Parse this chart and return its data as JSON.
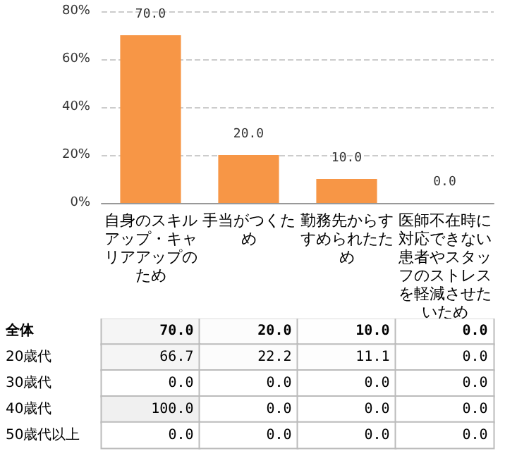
{
  "chart_data": [
    {
      "type": "bar",
      "categories": [
        "自身のスキルアップ・キャリアアップのため",
        "手当がつくため",
        "勤務先からすすめられたため",
        "医師不在時に対応できない患者やスタッフのストレスを軽減させたいため"
      ],
      "values": [
        70,
        20,
        10,
        0
      ],
      "value_labels": [
        "70.0",
        "20.0",
        "10.0",
        "0.0"
      ],
      "color": "#f79646",
      "ylim": [
        0,
        80
      ],
      "yticks": [
        {
          "value": 0,
          "label": "0%"
        },
        {
          "value": 20,
          "label": "20%"
        },
        {
          "value": 40,
          "label": "40%"
        },
        {
          "value": 60,
          "label": "60%"
        },
        {
          "value": 80,
          "label": "80%"
        }
      ],
      "grid": "y"
    },
    {
      "type": "heatmap",
      "categories": [
        null,
        null,
        null,
        null
      ],
      "y_categories": [
        "全体",
        "20歳代",
        "30歳代",
        "40歳代",
        "50歳代以上"
      ],
      "cells": [
        [
          70,
          20,
          10,
          0
        ],
        [
          66.7,
          22.2,
          11.1,
          0
        ],
        [
          0,
          0,
          0,
          0
        ],
        [
          100,
          0,
          0,
          0
        ],
        [
          0,
          0,
          0,
          0
        ]
      ],
      "cell_labels": [
        [
          "70.0",
          "20.0",
          "10.0",
          "0.0"
        ],
        [
          "66.7",
          "22.2",
          "11.1",
          "0.0"
        ],
        [
          "0.0",
          "0.0",
          "0.0",
          "0.0"
        ],
        [
          "100.0",
          "0.0",
          "0.0",
          "0.0"
        ],
        [
          "0.0",
          "0.0",
          "0.0",
          "0.0"
        ]
      ]
    }
  ]
}
